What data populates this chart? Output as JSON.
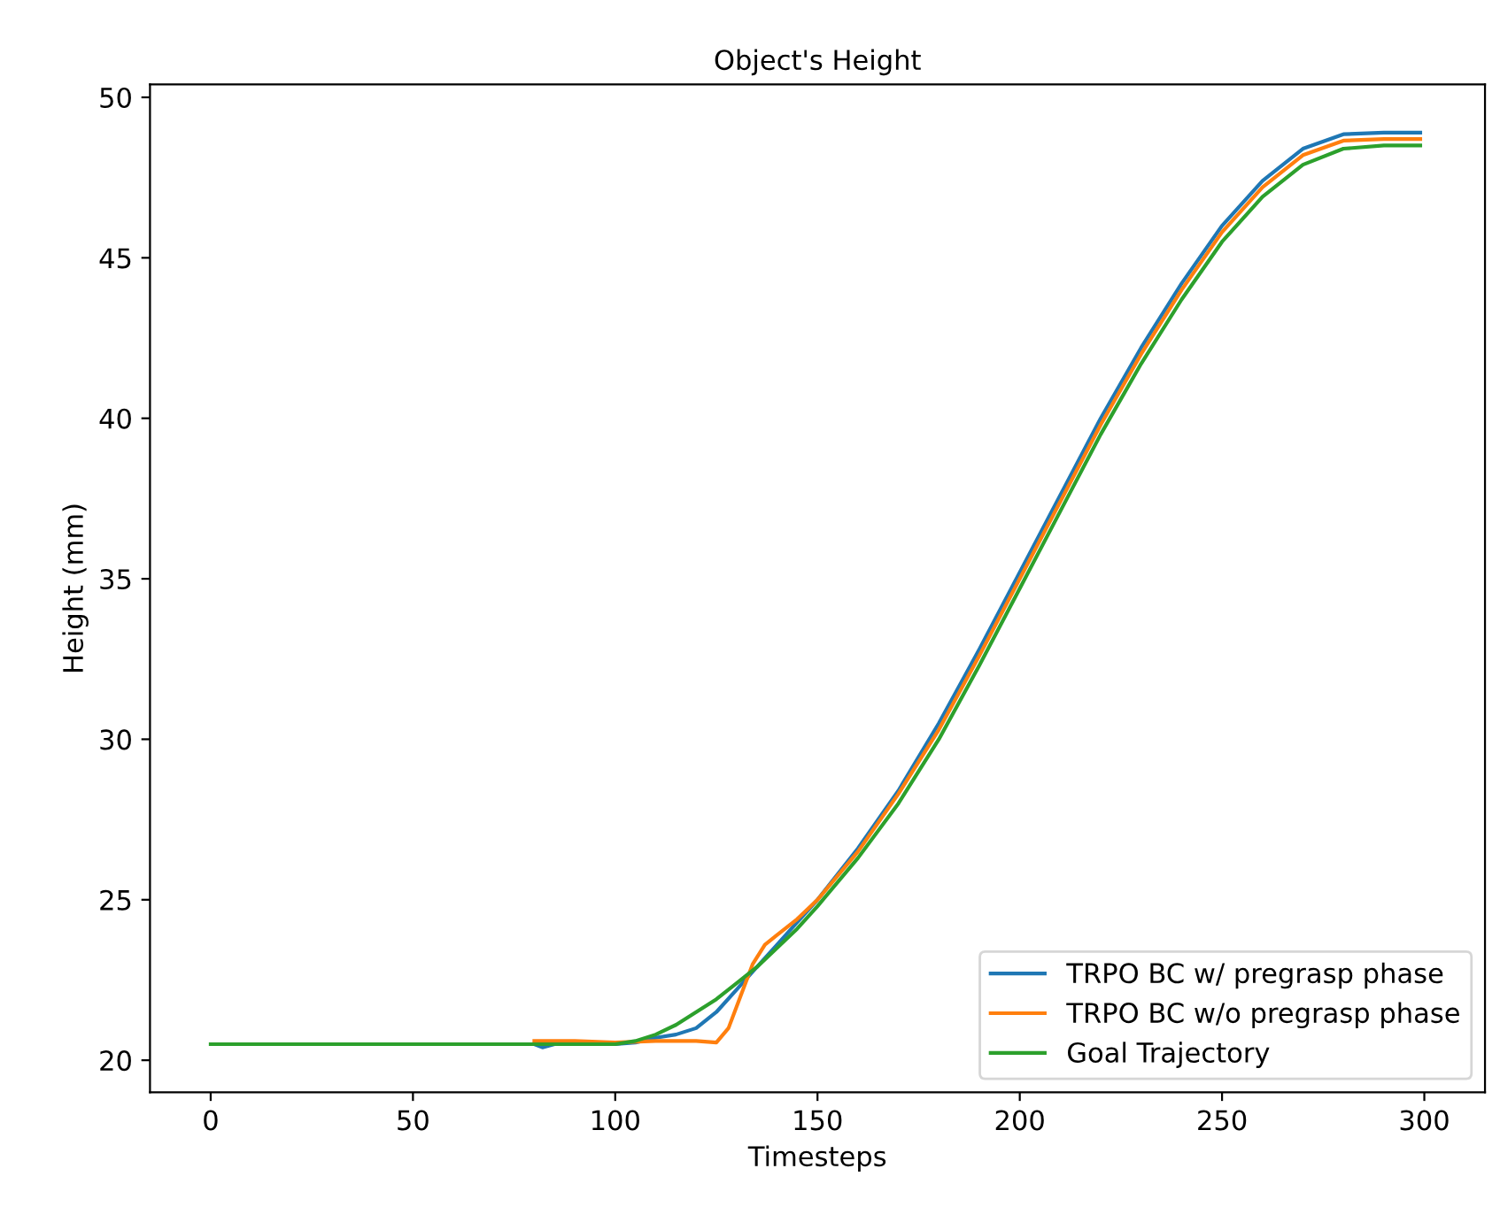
{
  "chart_data": {
    "type": "line",
    "title": "Object's Height",
    "xlabel": "Timesteps",
    "ylabel": "Height (mm)",
    "xlim": [
      -15,
      315
    ],
    "ylim": [
      19.0,
      50.4
    ],
    "xticks": [
      0,
      50,
      100,
      150,
      200,
      250,
      300
    ],
    "yticks": [
      20,
      25,
      30,
      35,
      40,
      45,
      50
    ],
    "grid": false,
    "legend": "bottom right",
    "marker": "none",
    "line_style": "solid",
    "series": [
      {
        "name": "TRPO BC w/ pregrasp phase",
        "color": "#1f77b4",
        "x": [
          80,
          82,
          85,
          90,
          100,
          105,
          110,
          115,
          120,
          125,
          130,
          135,
          140,
          145,
          150,
          160,
          170,
          180,
          190,
          200,
          210,
          220,
          230,
          240,
          250,
          260,
          270,
          280,
          290,
          299
        ],
        "values": [
          20.5,
          20.4,
          20.5,
          20.5,
          20.5,
          20.55,
          20.7,
          20.8,
          21.0,
          21.5,
          22.2,
          22.9,
          23.6,
          24.3,
          25.0,
          26.6,
          28.4,
          30.5,
          32.8,
          35.2,
          37.6,
          40.0,
          42.2,
          44.2,
          46.0,
          47.4,
          48.4,
          48.85,
          48.9,
          48.9
        ]
      },
      {
        "name": "TRPO BC w/o pregrasp phase",
        "color": "#ff7f0e",
        "x": [
          80,
          90,
          100,
          110,
          115,
          120,
          125,
          128,
          131,
          134,
          137,
          140,
          145,
          150,
          160,
          170,
          180,
          190,
          200,
          210,
          220,
          230,
          240,
          250,
          260,
          270,
          280,
          290,
          299
        ],
        "values": [
          20.6,
          20.6,
          20.55,
          20.6,
          20.6,
          20.6,
          20.55,
          21.0,
          22.0,
          23.0,
          23.6,
          23.9,
          24.4,
          25.0,
          26.5,
          28.3,
          30.3,
          32.6,
          35.0,
          37.4,
          39.8,
          42.0,
          44.0,
          45.8,
          47.2,
          48.2,
          48.65,
          48.7,
          48.7
        ]
      },
      {
        "name": "Goal Trajectory",
        "color": "#2ca02c",
        "x": [
          0,
          100,
          105,
          110,
          115,
          120,
          125,
          130,
          135,
          140,
          145,
          150,
          160,
          170,
          180,
          190,
          200,
          210,
          220,
          230,
          240,
          250,
          260,
          270,
          280,
          290,
          299
        ],
        "values": [
          20.5,
          20.5,
          20.6,
          20.8,
          21.1,
          21.5,
          21.9,
          22.4,
          22.9,
          23.5,
          24.1,
          24.8,
          26.3,
          28.0,
          30.0,
          32.3,
          34.7,
          37.1,
          39.5,
          41.7,
          43.7,
          45.5,
          46.9,
          47.9,
          48.4,
          48.5,
          48.5
        ]
      }
    ]
  }
}
